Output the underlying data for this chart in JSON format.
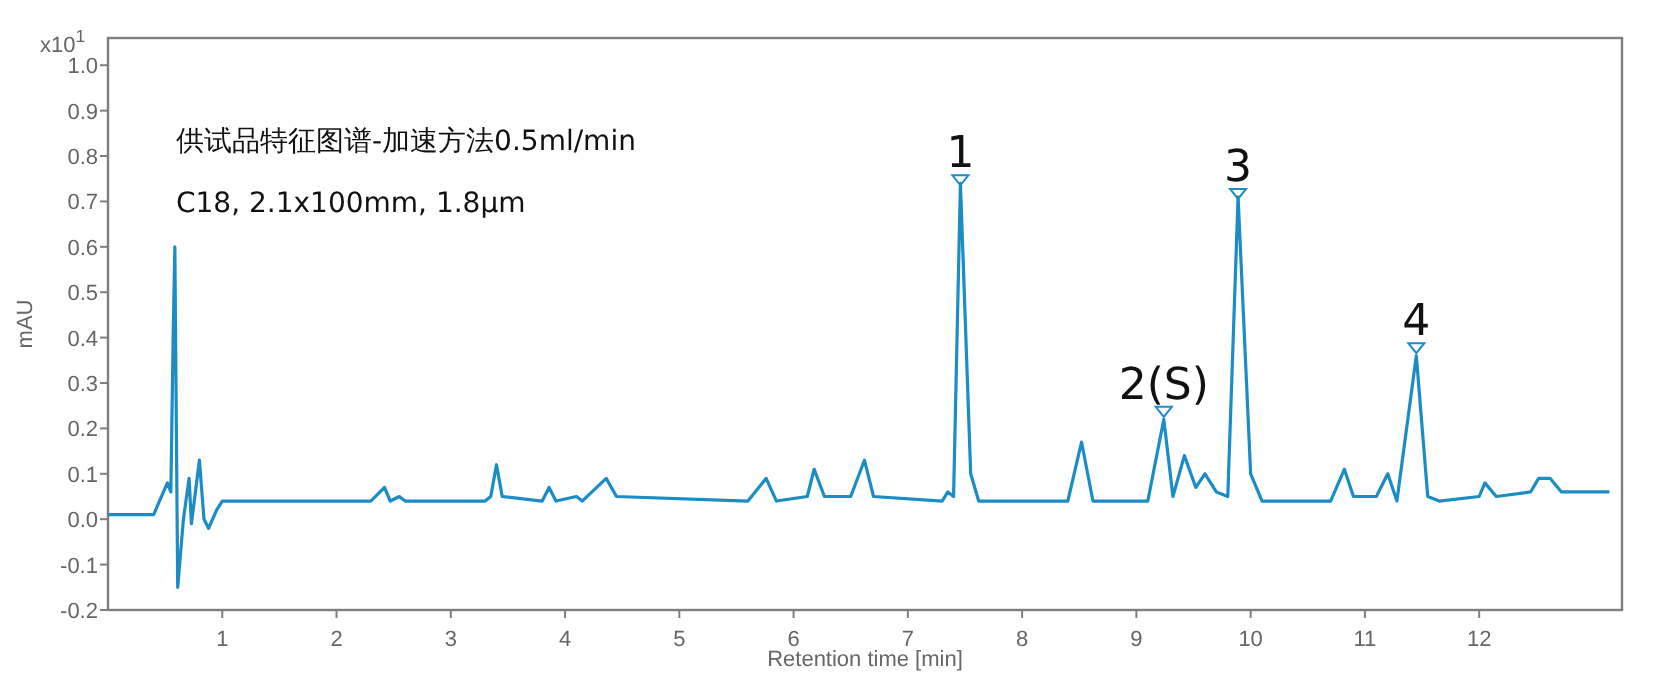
{
  "chart_data": {
    "type": "line",
    "title": "供试品特征图谱-加速方法0.5ml/min",
    "subtitle": "C18, 2.1x100mm, 1.8µm",
    "xlabel": "Retention time [min]",
    "ylabel": "mAU",
    "annotations": [
      "x10$^{1}$",
      {
        "text": "1",
        "x": 7.46,
        "y": 0.74
      },
      {
        "text": "2(S)",
        "x": 9.24,
        "y": 0.23
      },
      {
        "text": "3",
        "x": 9.89,
        "y": 0.71
      },
      {
        "text": "4",
        "x": 11.45,
        "y": 0.37
      }
    ],
    "xlim": [
      0,
      13.25
    ],
    "xticks": [
      1,
      2,
      3,
      4,
      5,
      6,
      7,
      8,
      9,
      10,
      11,
      12
    ],
    "ylim": [
      -0.2,
      1.06
    ],
    "yticks": [
      {
        "value": 1,
        "label": "1.0"
      },
      0.9,
      0.8,
      0.7,
      0.6,
      0.5,
      0.4,
      0.3,
      0.2,
      0.1,
      {
        "value": 0,
        "label": "0.0"
      },
      -0.1,
      -0.2
    ],
    "series": [
      {
        "color": "#1b8cc6",
        "x": [
          0,
          0.4,
          0.45,
          0.52,
          0.55,
          0.57,
          0.585,
          0.61,
          0.66,
          0.71,
          0.73,
          0.76,
          0.8,
          0.84,
          0.88,
          0.95,
          1.0,
          2.3,
          2.42,
          2.47,
          2.55,
          2.6,
          3.3,
          3.35,
          3.4,
          3.45,
          3.8,
          3.86,
          3.92,
          4.1,
          4.15,
          4.36,
          4.45,
          5.6,
          5.76,
          5.85,
          6.12,
          6.18,
          6.27,
          6.5,
          6.62,
          6.7,
          7.3,
          7.35,
          7.4,
          7.46,
          7.55,
          7.62,
          8.4,
          8.52,
          8.62,
          9.1,
          9.24,
          9.32,
          9.42,
          9.52,
          9.6,
          9.7,
          9.8,
          9.89,
          10.0,
          10.1,
          10.7,
          10.82,
          10.9,
          11.1,
          11.2,
          11.28,
          11.45,
          11.55,
          11.65,
          12.0,
          12.05,
          12.15,
          12.45,
          12.52,
          12.62,
          12.72,
          13.0,
          13.14
        ],
        "values": [
          0.01,
          0.01,
          0.04,
          0.08,
          0.06,
          0.4,
          0.6,
          -0.15,
          0.0,
          0.09,
          -0.01,
          0.05,
          0.13,
          0.0,
          -0.02,
          0.02,
          0.04,
          0.04,
          0.07,
          0.04,
          0.05,
          0.04,
          0.04,
          0.05,
          0.12,
          0.05,
          0.04,
          0.07,
          0.04,
          0.05,
          0.04,
          0.09,
          0.05,
          0.04,
          0.09,
          0.04,
          0.05,
          0.11,
          0.05,
          0.05,
          0.13,
          0.05,
          0.04,
          0.06,
          0.05,
          0.74,
          0.1,
          0.04,
          0.04,
          0.17,
          0.04,
          0.04,
          0.22,
          0.05,
          0.14,
          0.07,
          0.1,
          0.06,
          0.05,
          0.71,
          0.1,
          0.04,
          0.04,
          0.11,
          0.05,
          0.05,
          0.1,
          0.04,
          0.36,
          0.05,
          0.04,
          0.05,
          0.08,
          0.05,
          0.06,
          0.09,
          0.09,
          0.06,
          0.06,
          0.06
        ]
      }
    ]
  }
}
